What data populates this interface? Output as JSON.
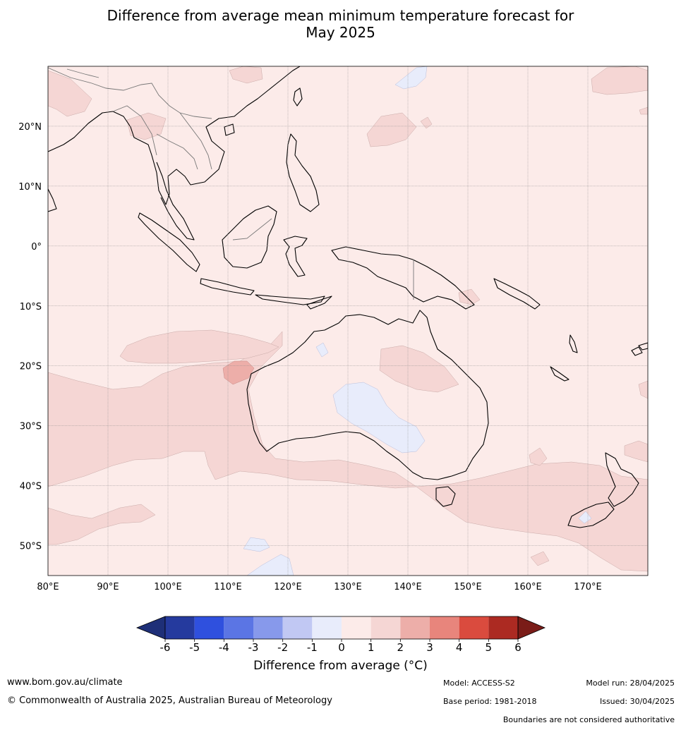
{
  "title": {
    "line1": "Difference from average mean minimum temperature forecast for",
    "line2": "May 2025"
  },
  "map": {
    "lon_range": [
      80,
      180
    ],
    "lat_range": [
      -55,
      30
    ],
    "lon_ticks": [
      "80°E",
      "90°E",
      "100°E",
      "110°E",
      "120°E",
      "130°E",
      "140°E",
      "150°E",
      "160°E",
      "170°E"
    ],
    "lat_ticks": [
      "20°N",
      "10°N",
      "0°",
      "10°S",
      "20°S",
      "30°S",
      "40°S",
      "50°S"
    ],
    "grid": true,
    "background_anomaly_band": "0 to 1",
    "colors": {
      "sea_bg": "#fcebe9",
      "band_1_2": "#f5d6d4",
      "band_2_3": "#edaea9",
      "band_m1_0": "#e8ecfb",
      "coast": "#000000",
      "border": "#777777"
    },
    "regions": [
      {
        "name": "southern-indian-ocean-warm",
        "band": "1 to 2"
      },
      {
        "name": "southern-ocean-nz-warm",
        "band": "1 to 2"
      },
      {
        "name": "western-ocean-warm-core",
        "band": "2 to 3"
      },
      {
        "name": "central-australia-cool",
        "band": "-1 to 0"
      },
      {
        "name": "north-pacific-cool",
        "band": "-1 to 0"
      },
      {
        "name": "southern-ocean-cool",
        "band": "-1 to 0"
      }
    ]
  },
  "colorbar": {
    "ticks": [
      "-6",
      "-5",
      "-4",
      "-3",
      "-2",
      "-1",
      "0",
      "1",
      "2",
      "3",
      "4",
      "5",
      "6"
    ],
    "colors": [
      "#253a9e",
      "#2f50de",
      "#5b75e4",
      "#8799eb",
      "#c1c8f3",
      "#e8ecfb",
      "#fcebe9",
      "#f5d6d4",
      "#edaea9",
      "#e8857c",
      "#da4b3e",
      "#ac2a22"
    ],
    "under_color": "#1e2f78",
    "over_color": "#7a1c18",
    "label": "Difference from average (°C)"
  },
  "footer": {
    "website": "www.bom.gov.au/climate",
    "copyright": "© Commonwealth of Australia 2025, Australian Bureau of Meteorology",
    "model": "Model: ACCESS-S2",
    "model_run": "Model run: 28/04/2025",
    "base_period": "Base period: 1981-2018",
    "issued": "Issued: 30/04/2025",
    "disclaimer": "Boundaries are not considered authoritative"
  }
}
